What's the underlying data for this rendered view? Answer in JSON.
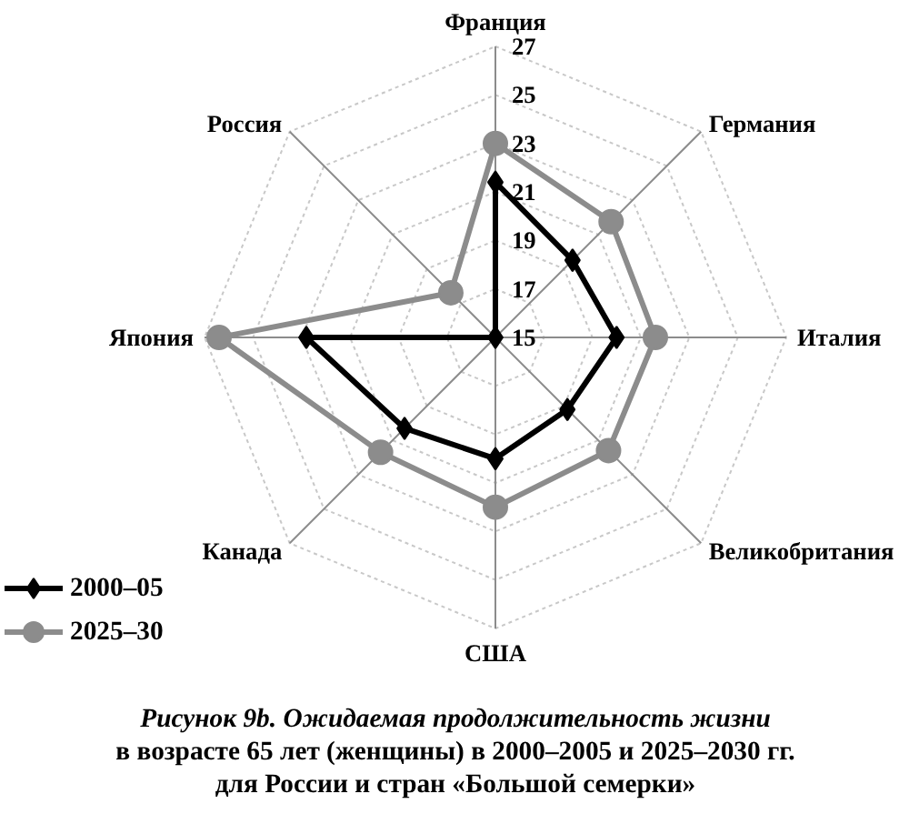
{
  "chart_data": {
    "type": "radar",
    "categories": [
      "Франция",
      "Германия",
      "Италия",
      "Великобритания",
      "США",
      "Канада",
      "Япония",
      "Россия"
    ],
    "ylim": [
      15,
      27
    ],
    "yticks": [
      15,
      17,
      19,
      21,
      23,
      25,
      27
    ],
    "grid": true,
    "legend": "bottom left",
    "series": [
      {
        "name": "2000–05",
        "color": "#000000",
        "marker": "diamond",
        "values": [
          21.4,
          19.5,
          20.0,
          19.2,
          20.0,
          20.3,
          22.8,
          15.0
        ]
      },
      {
        "name": "2025–30",
        "color": "#8c8c8c",
        "marker": "circle",
        "values": [
          23.0,
          21.75,
          21.6,
          21.6,
          22.0,
          21.7,
          26.4,
          17.6
        ]
      }
    ],
    "annotations": [
      "Рисунок 9b. Ожидаемая продолжительность жизни",
      "в возрасте 65 лет (женщины) в 2000–2005 и 2025–2030 гг.",
      "для России и стран «Большой семерки»"
    ]
  }
}
